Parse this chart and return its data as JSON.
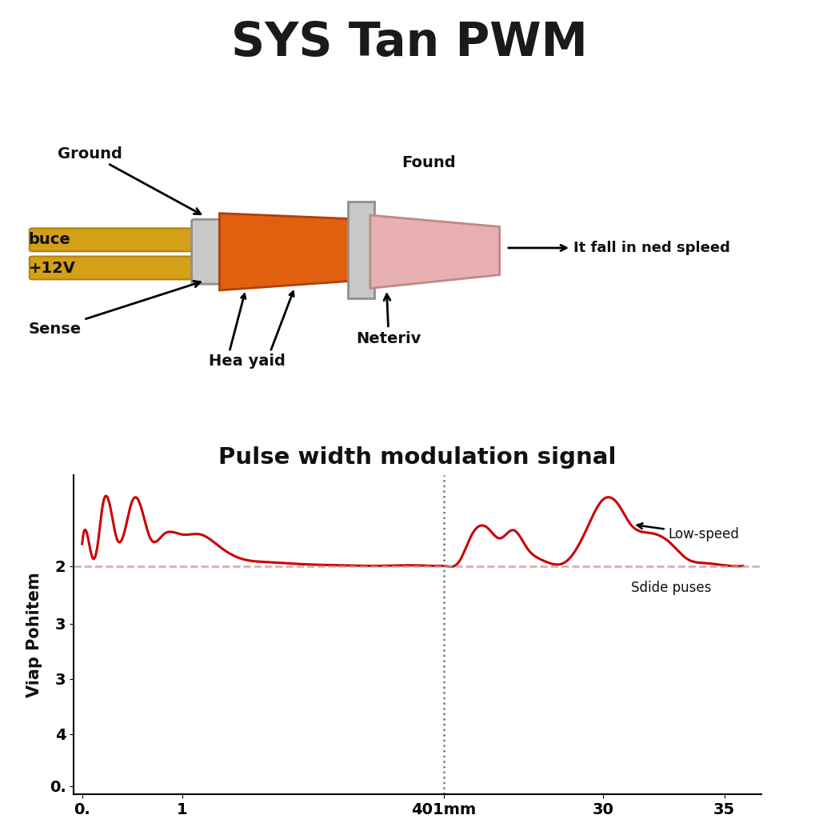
{
  "title": "SYS Tan PWM",
  "header_bg": "#d8d8d8",
  "chart_title": "Pulse width modulation signal",
  "ylabel": "Viap Pohitem",
  "line_color": "#cc0000",
  "dashed_color": "#cc9999",
  "annotation_low_speed": "Low-speed",
  "annotation_sdide": "Sdide puses",
  "bg_color": "#ffffff",
  "wire_color": "#d4a017",
  "wire_edge": "#b08010",
  "orange_body": "#e06010",
  "orange_edge": "#b04008",
  "gray_plate": "#c8c8c8",
  "gray_edge": "#909090",
  "pink_fan": "#e8b0b0",
  "pink_edge": "#c08888",
  "vline_x": 19.5,
  "dashed_y": 4.15,
  "xlim": [
    -0.3,
    36.5
  ],
  "ylim": [
    0,
    5.8
  ],
  "yticks": [
    0.15,
    1.1,
    2.1,
    3.1,
    4.15
  ],
  "ytick_labels": [
    "0.",
    "4",
    "3",
    "3",
    "2"
  ],
  "xticks": [
    0.15,
    5.5,
    19.5,
    28.0,
    34.5
  ],
  "xtick_labels": [
    "0.",
    "1",
    "401mm",
    "30",
    "35"
  ]
}
